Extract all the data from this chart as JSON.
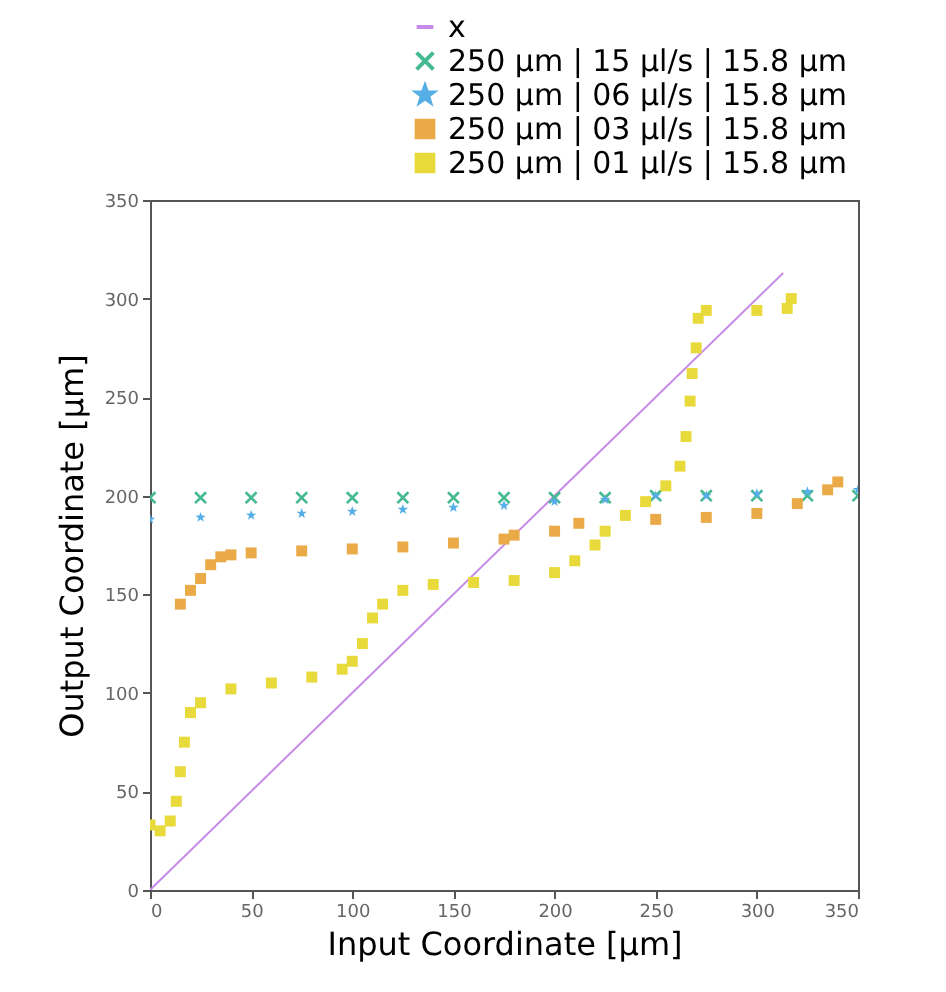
{
  "chart_data": {
    "type": "scatter",
    "xlabel": "Input Coordinate [µm]",
    "ylabel": "Output Coordinate [µm]",
    "xlim": [
      0,
      350
    ],
    "ylim": [
      0,
      350
    ],
    "xticks": [
      0,
      50,
      100,
      150,
      200,
      250,
      300,
      350
    ],
    "yticks": [
      0,
      50,
      100,
      150,
      200,
      250,
      300,
      350
    ],
    "grid": false,
    "legend": "top right",
    "series": [
      {
        "name": "x",
        "type": "line",
        "marker": "none",
        "line_style": "solid",
        "color": "#c68ae8",
        "x": [
          0,
          313
        ],
        "values": [
          0,
          313
        ]
      },
      {
        "name": "250 µm | 15 µl/s | 15.8 µm",
        "marker": "cross",
        "color": "#45b98f",
        "x": [
          0,
          25,
          50,
          75,
          100,
          125,
          150,
          175,
          200,
          225,
          250,
          275,
          300,
          325,
          350
        ],
        "values": [
          199,
          199,
          199,
          199,
          199,
          199,
          199,
          199,
          199,
          199,
          200,
          200,
          200,
          200,
          200
        ]
      },
      {
        "name": "250 µm | 06 µl/s | 15.8 µm",
        "marker": "star",
        "color": "#55aee6",
        "x": [
          0,
          25,
          50,
          75,
          100,
          125,
          150,
          175,
          200,
          225,
          250,
          275,
          300,
          325,
          350
        ],
        "values": [
          188,
          189,
          190,
          191,
          192,
          193,
          194,
          195,
          197,
          198,
          200,
          200,
          201,
          202,
          203
        ]
      },
      {
        "name": "250 µm | 03 µl/s | 15.8 µm",
        "marker": "square",
        "color": "#eaaa48",
        "x": [
          15,
          20,
          25,
          30,
          35,
          40,
          50,
          75,
          100,
          125,
          150,
          175,
          180,
          200,
          212,
          250,
          275,
          300,
          320,
          335,
          340
        ],
        "values": [
          145,
          152,
          158,
          165,
          169,
          170,
          171,
          172,
          173,
          174,
          176,
          178,
          180,
          182,
          186,
          188,
          189,
          191,
          196,
          203,
          207
        ]
      },
      {
        "name": "250 µm | 01 µl/s | 15.8 µm",
        "marker": "square",
        "color": "#e8da3a",
        "x": [
          0,
          5,
          10,
          13,
          15,
          17,
          20,
          25,
          40,
          60,
          80,
          95,
          100,
          105,
          110,
          115,
          125,
          140,
          160,
          180,
          200,
          210,
          220,
          225,
          235,
          245,
          255,
          262,
          265,
          267,
          268,
          270,
          271,
          275,
          300,
          315,
          317
        ],
        "values": [
          33,
          30,
          35,
          45,
          60,
          75,
          90,
          95,
          102,
          105,
          108,
          112,
          116,
          125,
          138,
          145,
          152,
          155,
          156,
          157,
          161,
          167,
          175,
          182,
          190,
          197,
          205,
          215,
          230,
          248,
          262,
          275,
          290,
          294,
          294,
          295,
          300
        ]
      }
    ]
  }
}
